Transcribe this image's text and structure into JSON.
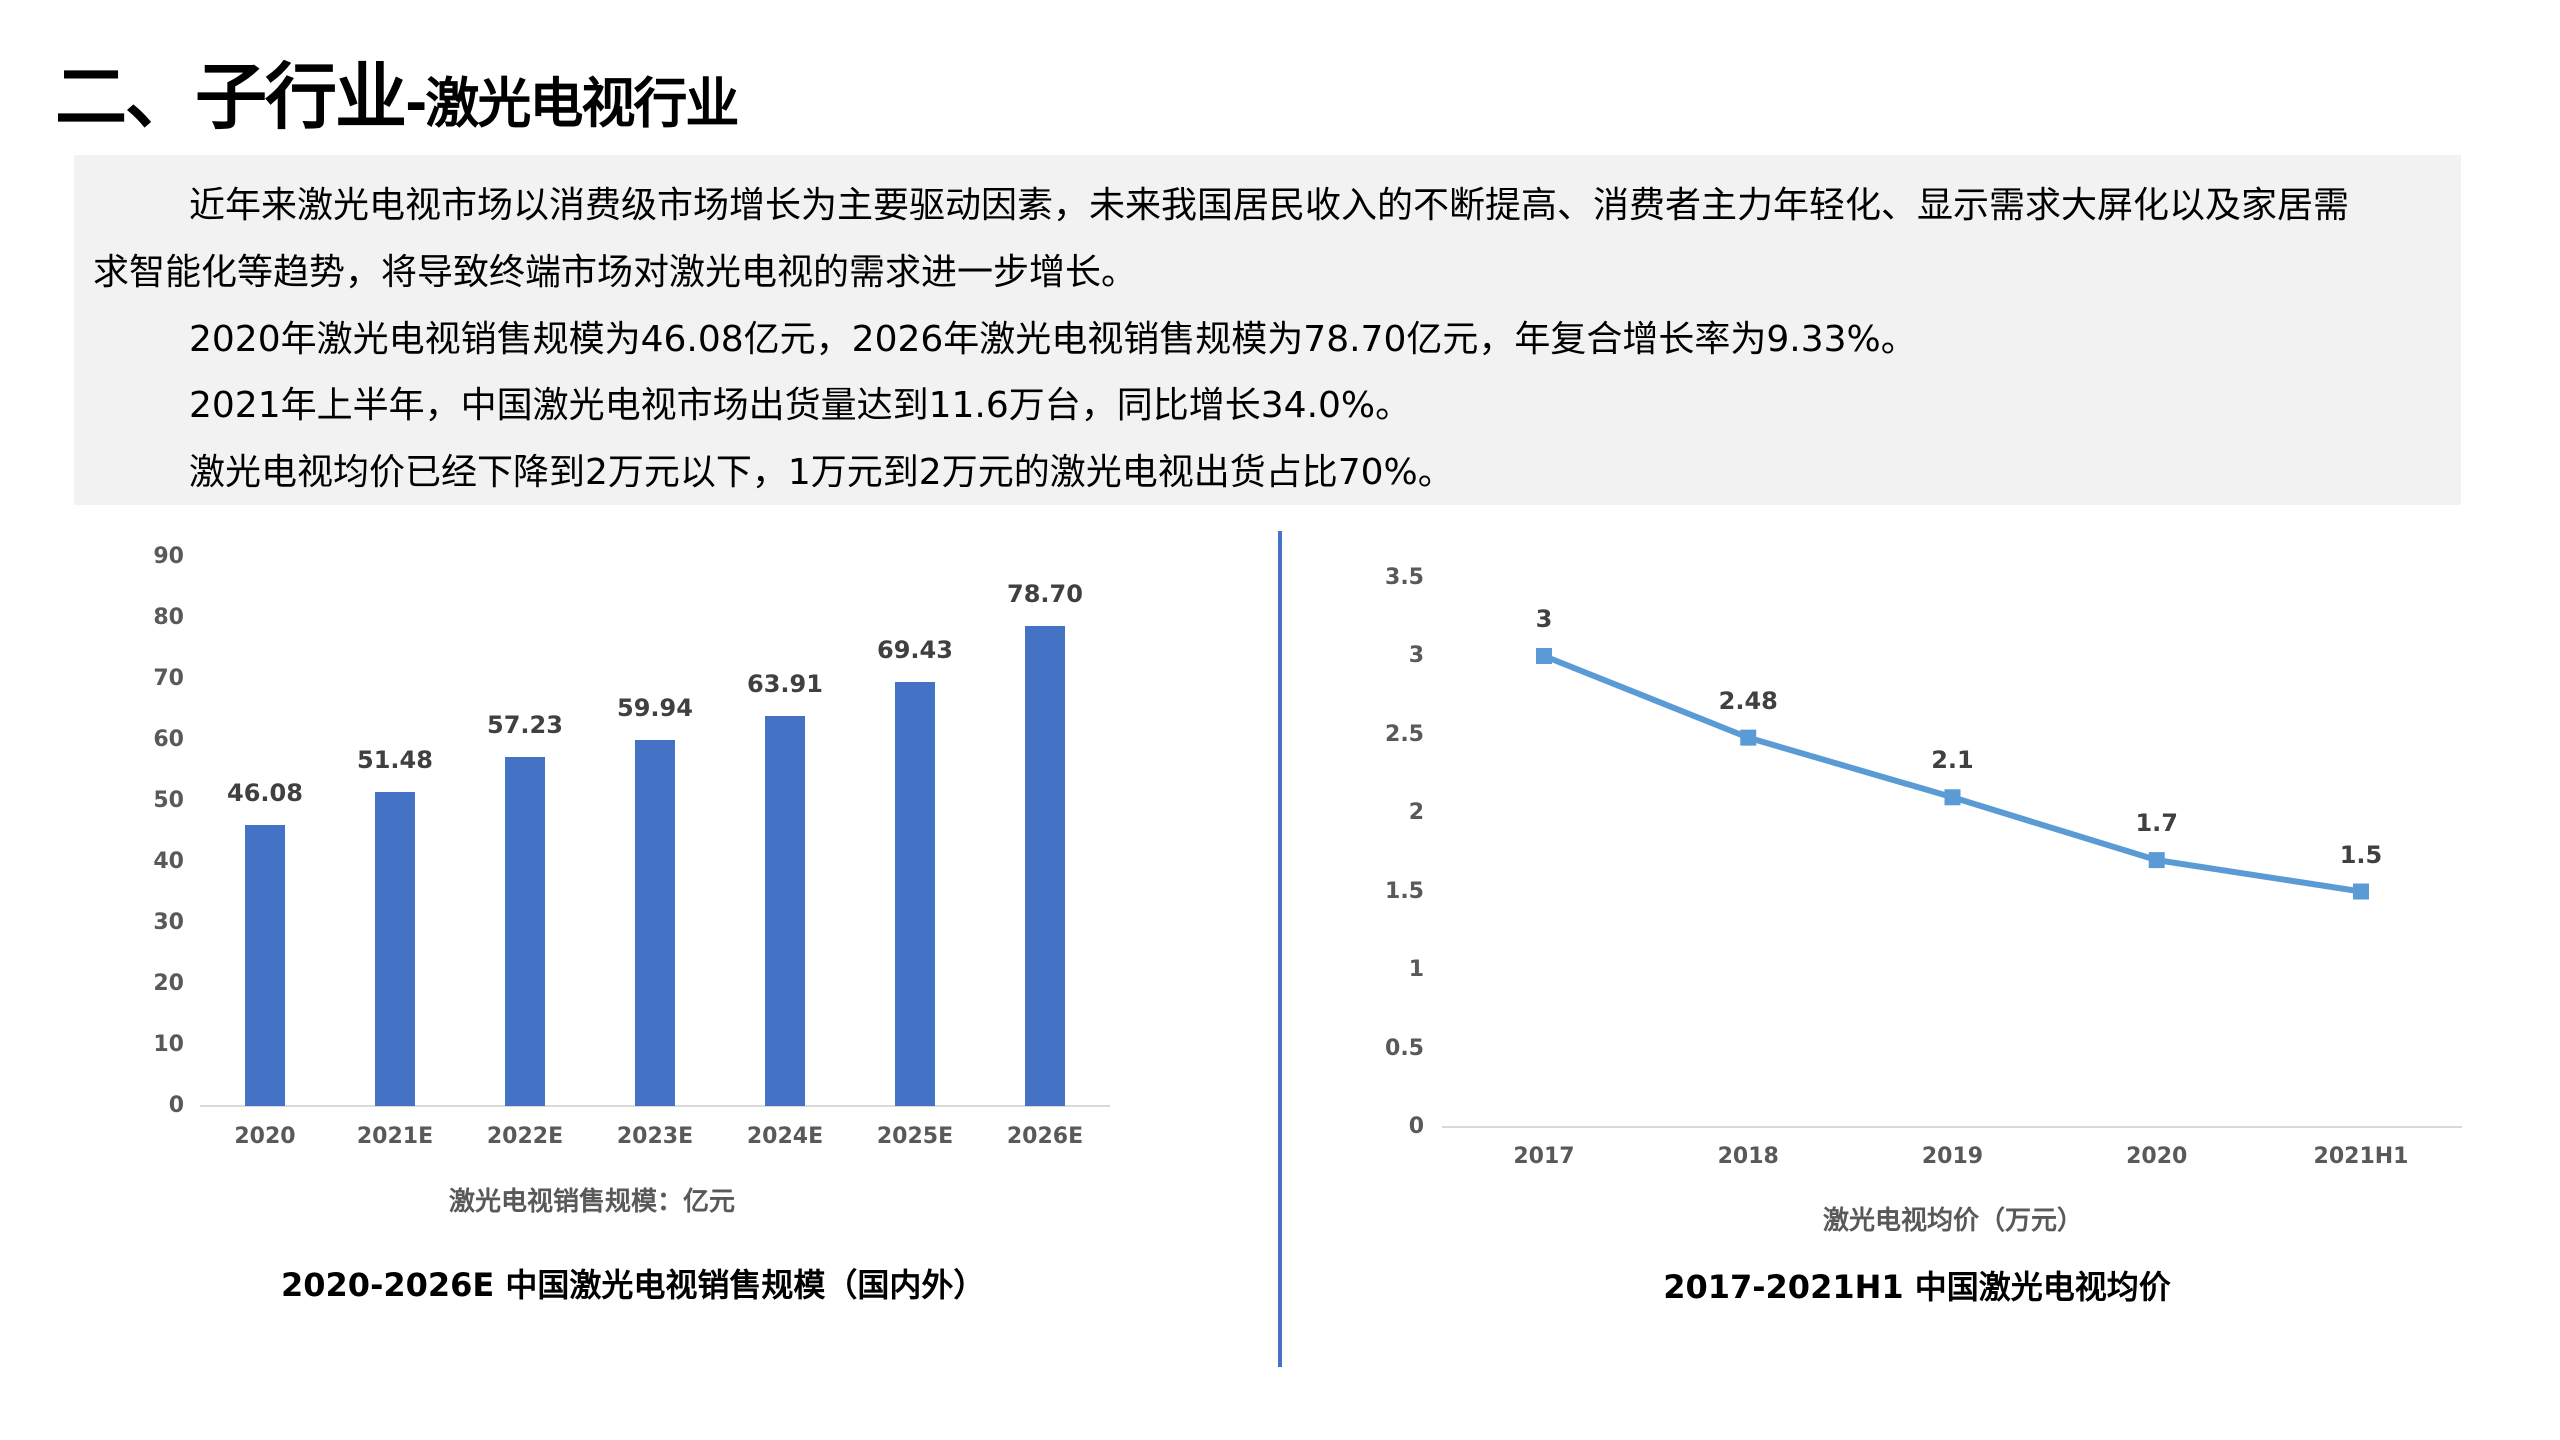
{
  "page": {
    "title_main": "二、子行业",
    "title_sub": "-激光电视行业"
  },
  "summary": {
    "lines": [
      "近年来激光电视市场以消费级市场增长为主要驱动因素，未来我国居民收入的不断提高、消费者主力年轻化、显示需求大屏化以及家居需",
      "求智能化等趋势，将导致终端市场对激光电视的需求进一步增长。",
      "2020年激光电视销售规模为46.08亿元，2026年激光电视销售规模为78.70亿元，年复合增长率为9.33%。",
      "2021年上半年，中国激光电视市场出货量达到11.6万台，同比增长34.0%。",
      "激光电视均价已经下降到2万元以下，1万元到2万元的激光电视出货占比70%。"
    ]
  },
  "colors": {
    "bar": "#4472C4",
    "line": "#5B9BD5",
    "divider": "#4472C4",
    "textbox_bg": "#F2F2F2",
    "axis_text": "#595959",
    "data_label": "#404040"
  },
  "chart_data": [
    {
      "type": "bar",
      "title": "2020-2026E 中国激光电视销售规模（国内外）",
      "xlabel": "激光电视销售规模：亿元",
      "ylabel": "",
      "categories": [
        "2020",
        "2021E",
        "2022E",
        "2023E",
        "2024E",
        "2025E",
        "2026E"
      ],
      "values": [
        46.08,
        51.48,
        57.23,
        59.94,
        63.91,
        69.43,
        78.7
      ],
      "value_labels": [
        "46.08",
        "51.48",
        "57.23",
        "59.94",
        "63.91",
        "69.43",
        "78.70"
      ],
      "yticks": [
        "0",
        "10",
        "20",
        "30",
        "40",
        "50",
        "60",
        "70",
        "80",
        "90"
      ],
      "ylim": [
        0,
        90
      ],
      "grid": false,
      "legend": null
    },
    {
      "type": "line",
      "title": "2017-2021H1 中国激光电视均价",
      "xlabel": "激光电视均价（万元）",
      "ylabel": "",
      "categories": [
        "2017",
        "2018",
        "2019",
        "2020",
        "2021H1"
      ],
      "values": [
        3,
        2.48,
        2.1,
        1.7,
        1.5
      ],
      "value_labels": [
        "3",
        "2.48",
        "2.1",
        "1.7",
        "1.5"
      ],
      "yticks": [
        "0",
        "0.5",
        "1",
        "1.5",
        "2",
        "2.5",
        "3",
        "3.5"
      ],
      "ylim": [
        0,
        3.5
      ],
      "grid": false,
      "legend": null,
      "marker": "square"
    }
  ]
}
